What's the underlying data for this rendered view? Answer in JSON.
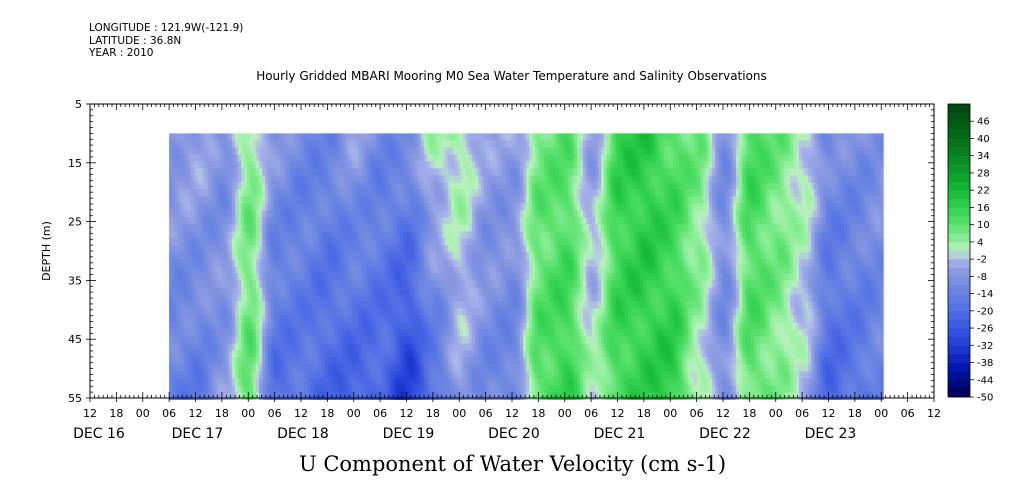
{
  "meta": {
    "longitude": "LONGITUDE : 121.9W(-121.9)",
    "latitude": "LATITUDE : 36.8N",
    "year": "YEAR : 2010"
  },
  "chart_data": {
    "type": "heatmap",
    "title": "Hourly Gridded MBARI Mooring M0 Sea Water Temperature and Salinity Observations",
    "xlabel": "U Component of Water Velocity (cm s-1)",
    "ylabel": "DEPTH (m)",
    "ylim": [
      55,
      5
    ],
    "y_ticks": [
      5,
      15,
      25,
      35,
      45,
      55
    ],
    "hour_ticks": [
      "12",
      "18",
      "00",
      "06",
      "12",
      "18",
      "00",
      "06",
      "12",
      "18",
      "00",
      "06",
      "12",
      "18",
      "00",
      "06",
      "12",
      "18",
      "00",
      "06",
      "12",
      "18",
      "00",
      "06",
      "12",
      "18",
      "00",
      "06",
      "12",
      "18",
      "00",
      "06",
      "12"
    ],
    "date_labels": [
      "DEC 16",
      "DEC 17",
      "DEC 18",
      "DEC 19",
      "DEC 20",
      "DEC 21",
      "DEC 22",
      "DEC 23"
    ],
    "data_depth_range": [
      10,
      55
    ],
    "data_time_start": "DEC 16 18:00",
    "data_time_end": "DEC 23 12:00",
    "colorbar": {
      "levels": [
        "46",
        "40",
        "34",
        "28",
        "22",
        "16",
        "10",
        "4",
        "-2",
        "-8",
        "-14",
        "-20",
        "-26",
        "-32",
        "-38",
        "-44",
        "-50"
      ],
      "min": -50,
      "max": 52,
      "step": 3
    },
    "u_velocity_cm_s": {
      "depths_m": [
        10,
        55
      ],
      "times": [
        "DEC 16 18:00",
        "DEC 17 00:00",
        "DEC 17 06:00",
        "DEC 17 12:00",
        "DEC 17 18:00",
        "DEC 18 00:00",
        "DEC 18 06:00",
        "DEC 18 12:00",
        "DEC 18 18:00",
        "DEC 19 00:00",
        "DEC 19 06:00",
        "DEC 19 12:00",
        "DEC 19 18:00",
        "DEC 20 00:00",
        "DEC 20 06:00",
        "DEC 20 12:00",
        "DEC 20 18:00",
        "DEC 21 00:00",
        "DEC 21 06:00",
        "DEC 21 12:00",
        "DEC 21 18:00",
        "DEC 22 00:00",
        "DEC 22 06:00",
        "DEC 22 12:00",
        "DEC 22 18:00",
        "DEC 23 00:00",
        "DEC 23 06:00",
        "DEC 23 12:00"
      ],
      "values_at_surface": [
        -6,
        -4,
        -10,
        6,
        -8,
        -12,
        -12,
        -6,
        -12,
        -10,
        2,
        4,
        -6,
        -6,
        8,
        10,
        -6,
        16,
        18,
        12,
        8,
        -10,
        14,
        8,
        2,
        -10,
        -10,
        -8
      ],
      "values_at_bottom": [
        -14,
        -16,
        -8,
        10,
        -20,
        -18,
        -22,
        -24,
        -22,
        -32,
        -20,
        -6,
        -12,
        -14,
        12,
        16,
        2,
        14,
        16,
        18,
        2,
        -10,
        10,
        6,
        -2,
        -22,
        -18,
        -14
      ]
    }
  }
}
